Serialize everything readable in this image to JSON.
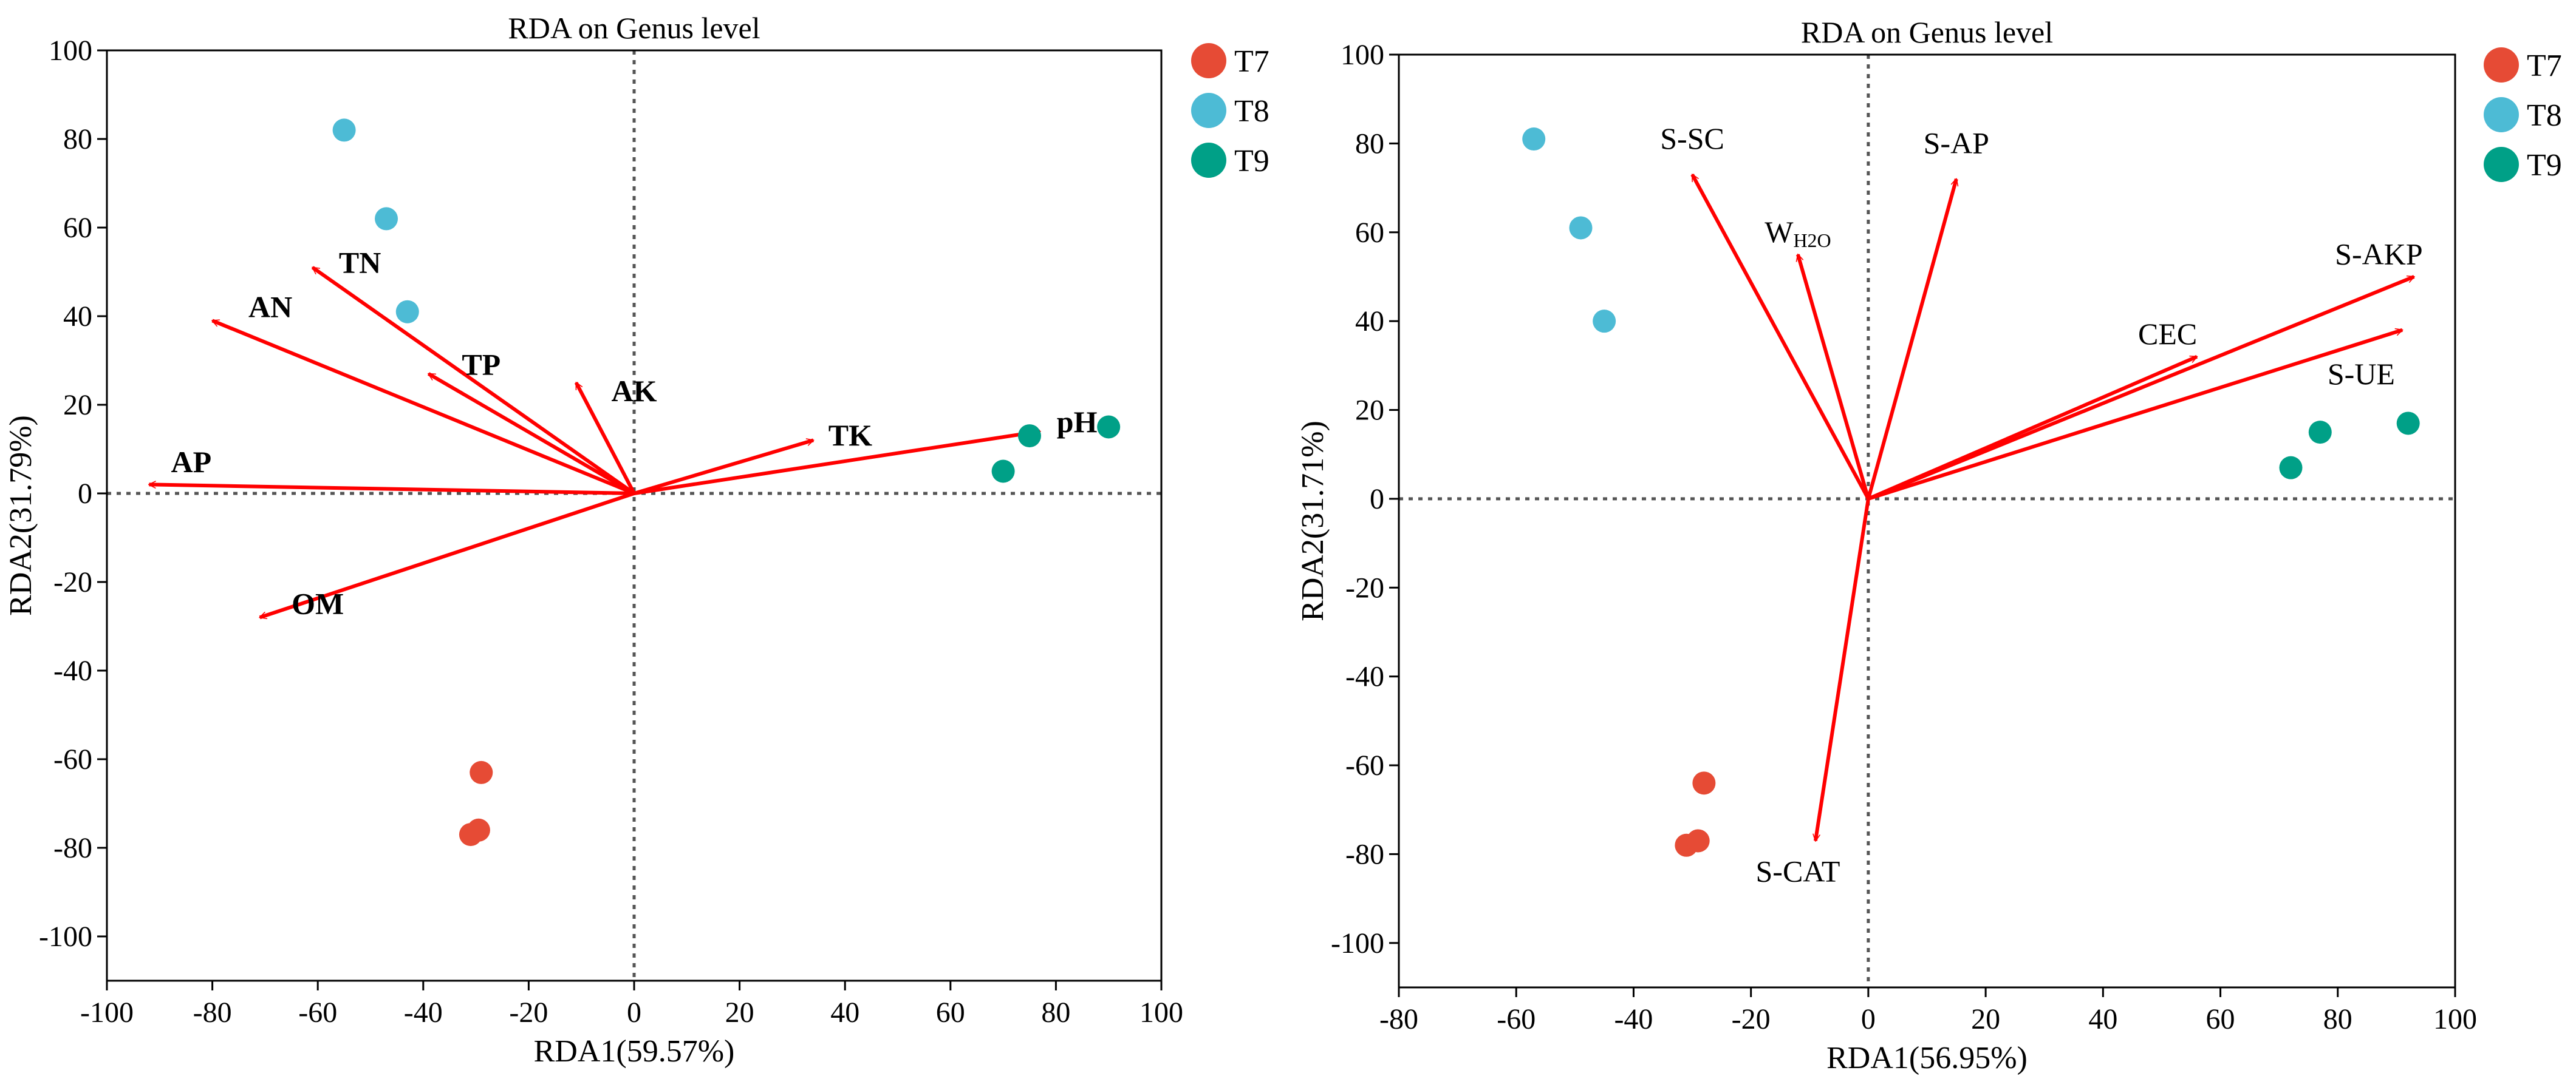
{
  "colors": {
    "T7": "#E64B35",
    "T8": "#4DBBD5",
    "T9": "#00A087",
    "arrow": "#FF0000",
    "axis": "#000000",
    "zero": "#555555"
  },
  "chart_data": [
    {
      "type": "scatter",
      "title": "RDA on Genus level",
      "xlabel": "RDA1(59.57%)",
      "ylabel": "RDA2(31.79%)",
      "xlim": [
        -100,
        100
      ],
      "ylim": [
        -110,
        100
      ],
      "xticks": [
        -100,
        -80,
        -60,
        -40,
        -20,
        0,
        20,
        40,
        60,
        80,
        100
      ],
      "yticks": [
        -100,
        -80,
        -60,
        -40,
        -20,
        0,
        20,
        40,
        60,
        80,
        100
      ],
      "legend": {
        "placement": "outside-right-top",
        "entries": [
          "T7",
          "T8",
          "T9"
        ]
      },
      "series": [
        {
          "name": "T7",
          "points": [
            [
              -31,
              -77
            ],
            [
              -29.5,
              -76
            ],
            [
              -29,
              -63
            ]
          ]
        },
        {
          "name": "T8",
          "points": [
            [
              -55,
              82
            ],
            [
              -47,
              62
            ],
            [
              -43,
              41
            ]
          ]
        },
        {
          "name": "T9",
          "points": [
            [
              70,
              5
            ],
            [
              75,
              13
            ],
            [
              90,
              15
            ]
          ]
        }
      ],
      "vectors": [
        {
          "label": "AP",
          "x": -92,
          "y": 2,
          "lx": -84,
          "ly": 7
        },
        {
          "label": "AN",
          "x": -80,
          "y": 39,
          "lx": -69,
          "ly": 42
        },
        {
          "label": "TN",
          "x": -61,
          "y": 51,
          "lx": -52,
          "ly": 52
        },
        {
          "label": "TP",
          "x": -39,
          "y": 27,
          "lx": -29,
          "ly": 29
        },
        {
          "label": "AK",
          "x": -11,
          "y": 25,
          "lx": 0,
          "ly": 23
        },
        {
          "label": "OM",
          "x": -71,
          "y": -28,
          "lx": -60,
          "ly": -25
        },
        {
          "label": "TK",
          "x": 34,
          "y": 12,
          "lx": 41,
          "ly": 13
        },
        {
          "label": "pH",
          "x": 77,
          "y": 14,
          "lx": 84,
          "ly": 16
        }
      ]
    },
    {
      "type": "scatter",
      "title": "RDA on Genus level",
      "xlabel": "RDA1(56.95%)",
      "ylabel": "RDA2(31.71%)",
      "xlim": [
        -80,
        100
      ],
      "ylim": [
        -110,
        100
      ],
      "xticks": [
        -80,
        -60,
        -40,
        -20,
        0,
        20,
        40,
        60,
        80,
        100
      ],
      "yticks": [
        -100,
        -80,
        -60,
        -40,
        -20,
        0,
        20,
        40,
        60,
        80,
        100
      ],
      "legend": {
        "placement": "outside-right-top",
        "entries": [
          "T7",
          "T8",
          "T9"
        ]
      },
      "series": [
        {
          "name": "T7",
          "points": [
            [
              -31,
              -78
            ],
            [
              -29,
              -77
            ],
            [
              -28,
              -64
            ]
          ]
        },
        {
          "name": "T8",
          "points": [
            [
              -57,
              81
            ],
            [
              -49,
              61
            ],
            [
              -45,
              40
            ]
          ]
        },
        {
          "name": "T9",
          "points": [
            [
              72,
              7
            ],
            [
              77,
              15
            ],
            [
              92,
              17
            ]
          ]
        }
      ],
      "vectors": [
        {
          "label": "S-SC",
          "x": -30,
          "y": 73,
          "lx": -30,
          "ly": 81
        },
        {
          "label": "W",
          "sub": "H2O",
          "x": -12,
          "y": 55,
          "lx": -12,
          "ly": 60
        },
        {
          "label": "S-AP",
          "x": 15,
          "y": 72,
          "lx": 15,
          "ly": 80
        },
        {
          "label": "S-AKP",
          "x": 93,
          "y": 50,
          "lx": 87,
          "ly": 55
        },
        {
          "label": "CEC",
          "x": 56,
          "y": 32,
          "lx": 51,
          "ly": 37
        },
        {
          "label": "S-UE",
          "x": 91,
          "y": 38,
          "lx": 84,
          "ly": 28
        },
        {
          "label": "S-CAT",
          "x": -9,
          "y": -77,
          "lx": -12,
          "ly": -84
        }
      ]
    }
  ]
}
